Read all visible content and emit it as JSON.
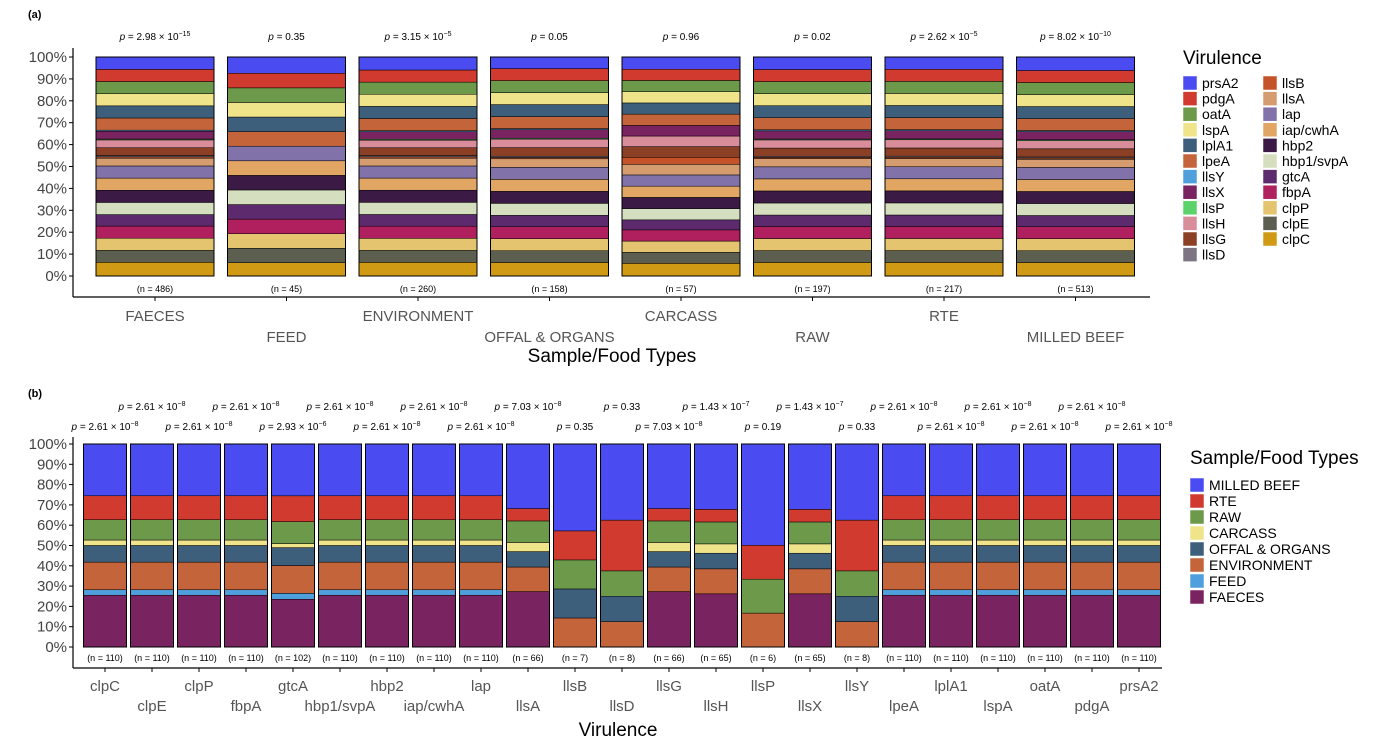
{
  "chart_data": [
    {
      "type": "bar",
      "stacked": "percent",
      "panel": "(a)",
      "xlabel": "Sample/Food Types",
      "ylabel": "",
      "ylim": [
        0,
        100
      ],
      "yticks": [
        "0%",
        "10%",
        "20%",
        "30%",
        "40%",
        "50%",
        "60%",
        "70%",
        "80%",
        "90%",
        "100%"
      ],
      "categories": [
        "FAECES",
        "FEED",
        "ENVIRONMENT",
        "OFFAL & ORGANS",
        "CARCASS",
        "RAW",
        "RTE",
        "MILLED BEEF"
      ],
      "n_labels": [
        "(n = 486)",
        "(n = 45)",
        "(n = 260)",
        "(n = 158)",
        "(n = 57)",
        "(n = 197)",
        "(n = 217)",
        "(n = 513)"
      ],
      "p_values": [
        {
          "base": "2.98",
          "exp": "−15"
        },
        {
          "base": "0.35",
          "exp": ""
        },
        {
          "base": "3.15",
          "exp": "−5"
        },
        {
          "base": "0.05",
          "exp": ""
        },
        {
          "base": "0.96",
          "exp": ""
        },
        {
          "base": "0.02",
          "exp": ""
        },
        {
          "base": "2.62",
          "exp": "−5"
        },
        {
          "base": "8.02",
          "exp": "−10"
        }
      ],
      "legend_title": "Virulence",
      "legend_position": "right",
      "legend_items": [
        "prsA2",
        "pdgA",
        "oatA",
        "lspA",
        "lplA1",
        "lpeA",
        "llsY",
        "llsX",
        "llsP",
        "llsH",
        "llsG",
        "llsD",
        "llsB",
        "llsA",
        "lap",
        "iap/cwhA",
        "hbp2",
        "hbp1/svpA",
        "gtcA",
        "fbpA",
        "clpP",
        "clpE",
        "clpC"
      ],
      "colors": {
        "prsA2": "#4b4bf2",
        "pdgA": "#d13b2f",
        "oatA": "#6d9a4a",
        "lspA": "#efe48a",
        "lplA1": "#3e5f7c",
        "lpeA": "#c4643a",
        "llsY": "#4f9fdc",
        "llsX": "#7a2361",
        "llsP": "#5bd36a",
        "llsH": "#d98c9a",
        "llsG": "#8b4026",
        "llsD": "#7d7682",
        "llsB": "#c4532a",
        "llsA": "#d59c6f",
        "lap": "#8272aa",
        "iap/cwhA": "#e2a664",
        "hbp2": "#3b1a45",
        "hbp1/svpA": "#d5dfbf",
        "gtcA": "#5d2a6e",
        "fbpA": "#b01f5e",
        "clpP": "#e5c470",
        "clpE": "#5c5f4f",
        "clpC": "#d19a14"
      },
      "series": [
        {
          "name": "clpC",
          "values": [
            6.3,
            6.3,
            6.3,
            6.3,
            6.3,
            6.3,
            6.3,
            6.3
          ]
        },
        {
          "name": "clpE",
          "values": [
            5.5,
            6.8,
            5.5,
            5.5,
            5.5,
            5.5,
            5.5,
            5.5
          ]
        },
        {
          "name": "clpP",
          "values": [
            5.6,
            6.9,
            5.6,
            5.6,
            5.6,
            5.6,
            5.6,
            5.6
          ]
        },
        {
          "name": "fbpA",
          "values": [
            5.6,
            6.9,
            5.6,
            5.6,
            5.6,
            5.6,
            5.6,
            5.6
          ]
        },
        {
          "name": "gtcA",
          "values": [
            5.3,
            6.9,
            5.4,
            5.3,
            5.0,
            5.3,
            5.3,
            5.2
          ]
        },
        {
          "name": "hbp1/svpA",
          "values": [
            5.6,
            6.9,
            5.6,
            5.6,
            5.6,
            5.6,
            5.6,
            5.6
          ]
        },
        {
          "name": "hbp2",
          "values": [
            5.6,
            6.9,
            5.6,
            5.6,
            5.6,
            5.6,
            5.6,
            5.6
          ]
        },
        {
          "name": "iap/cwhA",
          "values": [
            5.6,
            6.9,
            5.6,
            5.6,
            5.6,
            5.6,
            5.6,
            5.6
          ]
        },
        {
          "name": "lap",
          "values": [
            5.6,
            6.9,
            5.6,
            5.6,
            5.6,
            5.6,
            5.6,
            5.6
          ]
        },
        {
          "name": "llsA",
          "values": [
            3.6,
            0,
            3.6,
            4.0,
            5.3,
            3.8,
            3.8,
            3.8
          ]
        },
        {
          "name": "llsB",
          "values": [
            0.6,
            0,
            0.6,
            0.6,
            3.5,
            0.6,
            0.6,
            0.6
          ]
        },
        {
          "name": "llsD",
          "values": [
            0.6,
            0,
            0.6,
            0.6,
            0,
            0.5,
            0.5,
            0.5
          ]
        },
        {
          "name": "llsG",
          "values": [
            3.6,
            0,
            3.6,
            4.0,
            5.3,
            3.8,
            3.8,
            3.8
          ]
        },
        {
          "name": "llsH",
          "values": [
            3.6,
            0,
            3.5,
            4.0,
            5.3,
            3.8,
            3.8,
            3.8
          ]
        },
        {
          "name": "llsP",
          "values": [
            0.4,
            0,
            0.4,
            0.4,
            0,
            0.4,
            0.4,
            0.4
          ]
        },
        {
          "name": "llsX",
          "values": [
            3.6,
            0,
            3.5,
            4.0,
            5.3,
            3.8,
            3.8,
            3.8
          ]
        },
        {
          "name": "llsY",
          "values": [
            0.5,
            0,
            0.5,
            0.5,
            0,
            0.5,
            0.5,
            0.5
          ]
        },
        {
          "name": "lpeA",
          "values": [
            5.6,
            6.9,
            5.6,
            5.6,
            5.6,
            5.6,
            5.6,
            5.6
          ]
        },
        {
          "name": "lplA1",
          "values": [
            5.6,
            6.9,
            5.6,
            5.6,
            5.6,
            5.6,
            5.6,
            5.6
          ]
        },
        {
          "name": "lspA",
          "values": [
            5.6,
            6.9,
            5.6,
            5.6,
            5.6,
            5.6,
            5.6,
            5.6
          ]
        },
        {
          "name": "oatA",
          "values": [
            5.6,
            6.9,
            5.6,
            5.6,
            5.6,
            5.6,
            5.6,
            5.6
          ]
        },
        {
          "name": "pdgA",
          "values": [
            5.6,
            6.9,
            5.6,
            5.6,
            5.6,
            5.6,
            5.6,
            5.6
          ]
        },
        {
          "name": "prsA2",
          "values": [
            5.7,
            7.7,
            6.0,
            5.4,
            6.1,
            5.8,
            5.7,
            6.3
          ]
        }
      ]
    },
    {
      "type": "bar",
      "stacked": "percent",
      "panel": "(b)",
      "xlabel": "Virulence",
      "ylabel": "",
      "ylim": [
        0,
        100
      ],
      "yticks": [
        "0%",
        "10%",
        "20%",
        "30%",
        "40%",
        "50%",
        "60%",
        "70%",
        "80%",
        "90%",
        "100%"
      ],
      "categories": [
        "clpC",
        "clpE",
        "clpP",
        "fbpA",
        "gtcA",
        "hbp1/svpA",
        "hbp2",
        "iap/cwhA",
        "lap",
        "llsA",
        "llsB",
        "llsD",
        "llsG",
        "llsH",
        "llsP",
        "llsX",
        "llsY",
        "lpeA",
        "lplA1",
        "lspA",
        "oatA",
        "pdgA",
        "prsA2"
      ],
      "n_labels": [
        "(n = 110)",
        "(n = 110)",
        "(n = 110)",
        "(n = 110)",
        "(n = 102)",
        "(n = 110)",
        "(n = 110)",
        "(n = 110)",
        "(n = 110)",
        "(n = 66)",
        "(n = 7)",
        "(n = 8)",
        "(n = 66)",
        "(n = 65)",
        "(n = 6)",
        "(n = 65)",
        "(n = 8)",
        "(n = 110)",
        "(n = 110)",
        "(n = 110)",
        "(n = 110)",
        "(n = 110)",
        "(n = 110)"
      ],
      "p_values": [
        {
          "base": "2.61",
          "exp": "−8"
        },
        {
          "base": "2.61",
          "exp": "−8"
        },
        {
          "base": "2.61",
          "exp": "−8"
        },
        {
          "base": "2.61",
          "exp": "−8"
        },
        {
          "base": "2.93",
          "exp": "−6"
        },
        {
          "base": "2.61",
          "exp": "−8"
        },
        {
          "base": "2.61",
          "exp": "−8"
        },
        {
          "base": "2.61",
          "exp": "−8"
        },
        {
          "base": "2.61",
          "exp": "−8"
        },
        {
          "base": "7.03",
          "exp": "−8"
        },
        {
          "base": "0.35",
          "exp": ""
        },
        {
          "base": "0.33",
          "exp": ""
        },
        {
          "base": "7.03",
          "exp": "−8"
        },
        {
          "base": "1.43",
          "exp": "−7"
        },
        {
          "base": "0.19",
          "exp": ""
        },
        {
          "base": "1.43",
          "exp": "−7"
        },
        {
          "base": "0.33",
          "exp": ""
        },
        {
          "base": "2.61",
          "exp": "−8"
        },
        {
          "base": "2.61",
          "exp": "−8"
        },
        {
          "base": "2.61",
          "exp": "−8"
        },
        {
          "base": "2.61",
          "exp": "−8"
        },
        {
          "base": "2.61",
          "exp": "−8"
        },
        {
          "base": "2.61",
          "exp": "−8"
        }
      ],
      "legend_title": "Sample/Food Types",
      "legend_position": "right",
      "legend_items": [
        "MILLED BEEF",
        "RTE",
        "RAW",
        "CARCASS",
        "OFFAL & ORGANS",
        "ENVIRONMENT",
        "FEED",
        "FAECES"
      ],
      "colors": {
        "MILLED BEEF": "#4b4bf2",
        "RTE": "#d13b2f",
        "RAW": "#6d9a4a",
        "CARCASS": "#efe48a",
        "OFFAL & ORGANS": "#3e5f7c",
        "ENVIRONMENT": "#c4643a",
        "FEED": "#4f9fdc",
        "FAECES": "#7a2361"
      },
      "series": [
        {
          "name": "FAECES",
          "values": [
            25.5,
            25.5,
            25.5,
            25.5,
            23.5,
            25.5,
            25.5,
            25.5,
            25.5,
            27.3,
            0,
            0,
            27.3,
            26.2,
            0,
            26.2,
            0,
            25.5,
            25.5,
            25.5,
            25.5,
            25.5,
            25.5
          ]
        },
        {
          "name": "FEED",
          "values": [
            2.7,
            2.7,
            2.7,
            2.7,
            2.9,
            2.7,
            2.7,
            2.7,
            2.7,
            0,
            0,
            0,
            0,
            0,
            0,
            0,
            0,
            2.7,
            2.7,
            2.7,
            2.7,
            2.7,
            2.7
          ]
        },
        {
          "name": "ENVIRONMENT",
          "values": [
            13.6,
            13.6,
            13.6,
            13.6,
            13.7,
            13.6,
            13.6,
            13.6,
            13.6,
            12.1,
            14.3,
            12.5,
            12.1,
            12.3,
            16.7,
            12.3,
            12.5,
            13.6,
            13.6,
            13.6,
            13.6,
            13.6,
            13.6
          ]
        },
        {
          "name": "OFFAL & ORGANS",
          "values": [
            8.2,
            8.2,
            8.2,
            8.2,
            8.8,
            8.2,
            8.2,
            8.2,
            8.2,
            7.6,
            14.3,
            12.5,
            7.6,
            7.7,
            0,
            7.7,
            12.5,
            8.2,
            8.2,
            8.2,
            8.2,
            8.2,
            8.2
          ]
        },
        {
          "name": "CARCASS",
          "values": [
            2.7,
            2.7,
            2.7,
            2.7,
            2.0,
            2.7,
            2.7,
            2.7,
            2.7,
            4.5,
            0,
            0,
            4.5,
            4.6,
            0,
            4.6,
            0,
            2.7,
            2.7,
            2.7,
            2.7,
            2.7,
            2.7
          ]
        },
        {
          "name": "RAW",
          "values": [
            10.0,
            10.0,
            10.0,
            10.0,
            10.8,
            10.0,
            10.0,
            10.0,
            10.0,
            10.6,
            14.3,
            12.5,
            10.6,
            10.8,
            16.7,
            10.8,
            12.5,
            10.0,
            10.0,
            10.0,
            10.0,
            10.0,
            10.0
          ]
        },
        {
          "name": "RTE",
          "values": [
            11.8,
            11.8,
            11.8,
            11.8,
            12.7,
            11.8,
            11.8,
            11.8,
            11.8,
            6.1,
            14.3,
            25.0,
            6.1,
            6.2,
            16.7,
            6.2,
            25.0,
            11.8,
            11.8,
            11.8,
            11.8,
            11.8,
            11.8
          ]
        },
        {
          "name": "MILLED BEEF",
          "values": [
            25.5,
            25.5,
            25.5,
            25.5,
            25.5,
            25.5,
            25.5,
            25.5,
            25.5,
            31.8,
            42.8,
            37.5,
            31.8,
            32.2,
            49.9,
            32.2,
            37.5,
            25.5,
            25.5,
            25.5,
            25.5,
            25.5,
            25.5
          ]
        }
      ]
    }
  ]
}
